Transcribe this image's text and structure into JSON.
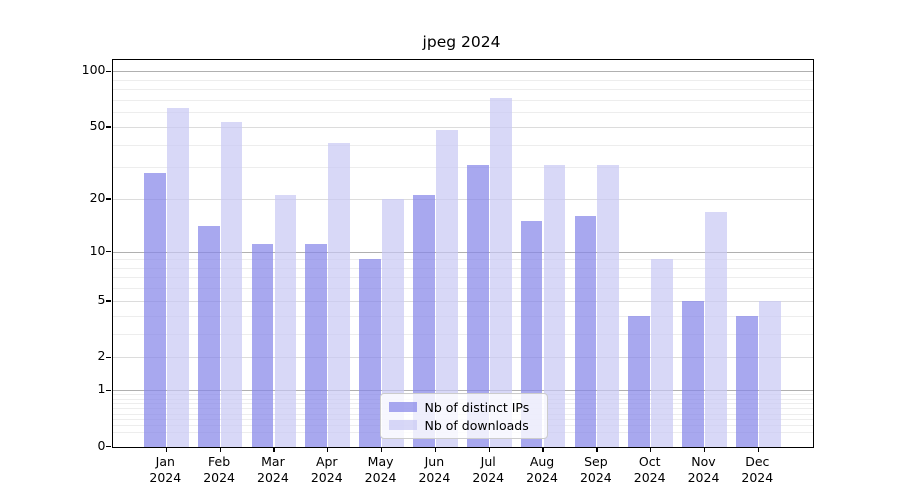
{
  "chart": {
    "title": "jpeg 2024",
    "legend": [
      "Nb of distinct IPs",
      "Nb of downloads"
    ],
    "colors": {
      "ips_bar": "rgba(134,134,233,0.72)",
      "downloads_bar": "rgba(199,199,244,0.70)",
      "grid_strong": "#b0b0b0",
      "grid_medium": "#dcdcdc",
      "grid_minor": "#ededed",
      "axis": "#000000"
    }
  },
  "chart_data": {
    "type": "bar",
    "title": "jpeg 2024",
    "categories": [
      "Jan 2024",
      "Feb 2024",
      "Mar 2024",
      "Apr 2024",
      "May 2024",
      "Jun 2024",
      "Jul 2024",
      "Aug 2024",
      "Sep 2024",
      "Oct 2024",
      "Nov 2024",
      "Dec 2024"
    ],
    "series": [
      {
        "name": "Nb of distinct IPs",
        "values": [
          28,
          14,
          11,
          11,
          9,
          21,
          31,
          15,
          16,
          4,
          5,
          4
        ]
      },
      {
        "name": "Nb of downloads",
        "values": [
          63,
          53,
          21,
          41,
          20,
          48,
          72,
          31,
          31,
          9,
          17,
          5
        ]
      }
    ],
    "xlabel": "",
    "ylabel": "",
    "yscale": "symlog",
    "ylim": [
      0,
      115
    ],
    "y_ticks": [
      0,
      1,
      2,
      5,
      10,
      20,
      50,
      100
    ],
    "y_strong_grid": [
      1,
      10,
      100
    ],
    "y_medium_grid": [
      2,
      5,
      20,
      50
    ],
    "y_minor_grid": [
      0.2,
      0.3,
      0.4,
      0.5,
      0.6,
      0.7,
      0.8,
      0.9,
      3,
      4,
      6,
      7,
      8,
      9,
      30,
      40,
      60,
      70,
      80,
      90
    ],
    "grid": true,
    "legend_position": "lower center"
  }
}
